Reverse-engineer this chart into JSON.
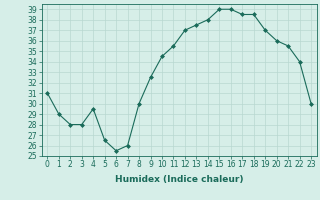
{
  "x": [
    0,
    1,
    2,
    3,
    4,
    5,
    6,
    7,
    8,
    9,
    10,
    11,
    12,
    13,
    14,
    15,
    16,
    17,
    18,
    19,
    20,
    21,
    22,
    23
  ],
  "y": [
    31,
    29,
    28,
    28,
    29.5,
    26.5,
    25.5,
    26,
    30,
    32.5,
    34.5,
    35.5,
    37,
    37.5,
    38,
    39,
    39,
    38.5,
    38.5,
    37,
    36,
    35.5,
    34,
    30
  ],
  "xlabel": "Humidex (Indice chaleur)",
  "ylim": [
    25,
    39.5
  ],
  "xlim": [
    -0.5,
    23.5
  ],
  "yticks": [
    25,
    26,
    27,
    28,
    29,
    30,
    31,
    32,
    33,
    34,
    35,
    36,
    37,
    38,
    39
  ],
  "xticks": [
    0,
    1,
    2,
    3,
    4,
    5,
    6,
    7,
    8,
    9,
    10,
    11,
    12,
    13,
    14,
    15,
    16,
    17,
    18,
    19,
    20,
    21,
    22,
    23
  ],
  "line_color": "#1a6b5a",
  "marker": "D",
  "marker_size": 2,
  "bg_color": "#d6eee8",
  "grid_color": "#b8d8d0",
  "label_fontsize": 6.5,
  "tick_fontsize": 5.5
}
